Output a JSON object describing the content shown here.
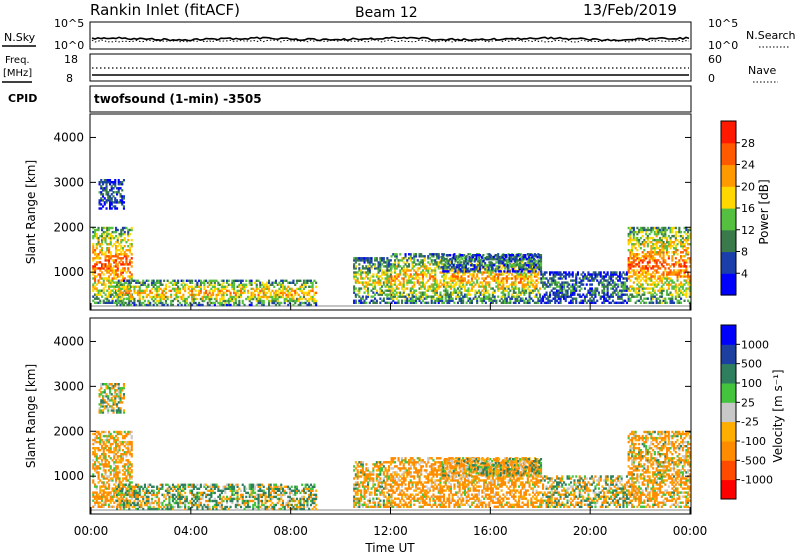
{
  "header": {
    "title": "Rankin Inlet (fitACF)",
    "beam": "Beam 12",
    "date": "13/Feb/2019"
  },
  "top_panel": {
    "nsky_label": "N.Sky",
    "nsky_ticks": [
      "10^5",
      "10^0"
    ],
    "nsearch_label": "N.Search",
    "nsearch_ticks": [
      "10^5",
      "10^0"
    ],
    "freq_label": "Freq.",
    "freq_unit": "[MHz]",
    "freq_ticks": [
      "18",
      "8"
    ],
    "nave_label": "Nave",
    "nave_ticks": [
      "60",
      "0"
    ],
    "cpid_label": "CPID",
    "cpid_text": "twofsound (1-min) -3505"
  },
  "colors": {
    "power": [
      "#0000ff",
      "#1a3faa",
      "#3a7a4a",
      "#55c040",
      "#ffd800",
      "#ff9900",
      "#ff5a00",
      "#ff1a00"
    ],
    "velocity": [
      "#ff0000",
      "#ff4b00",
      "#ff8c00",
      "#ffae00",
      "#c8c8c8",
      "#44c43c",
      "#2f7f5f",
      "#1c3fa0",
      "#0000ff"
    ]
  },
  "chart_data": [
    {
      "type": "heatmap",
      "name": "power",
      "ylabel": "Slant Range [km]",
      "xlabel": "",
      "x_ticks": [
        "00:00",
        "04:00",
        "08:00",
        "12:00",
        "16:00",
        "20:00",
        "00:00"
      ],
      "xlim_hours": [
        0,
        24
      ],
      "y_ticks": [
        1000,
        2000,
        3000,
        4000
      ],
      "ylim": [
        180,
        4500
      ],
      "colorbar_label": "Power [dB]",
      "colorbar_ticks": [
        "4",
        "8",
        "12",
        "16",
        "20",
        "24",
        "28"
      ],
      "colorbar_range": [
        0,
        32
      ],
      "regions": [
        {
          "t": [
            0.05,
            1.6
          ],
          "r": [
            300,
            2000
          ],
          "peak": 26
        },
        {
          "t": [
            1.0,
            9.0
          ],
          "r": [
            250,
            800
          ],
          "peak": 22
        },
        {
          "t": [
            10.5,
            12.0
          ],
          "r": [
            300,
            1300
          ],
          "peak": 18
        },
        {
          "t": [
            12.0,
            18.0
          ],
          "r": [
            300,
            1400
          ],
          "peak": 22
        },
        {
          "t": [
            14.0,
            18.0
          ],
          "r": [
            1000,
            1400
          ],
          "peak": 10
        },
        {
          "t": [
            18.0,
            21.5
          ],
          "r": [
            300,
            1000
          ],
          "peak": 10
        },
        {
          "t": [
            21.5,
            24.0
          ],
          "r": [
            300,
            2000
          ],
          "peak": 26
        },
        {
          "t": [
            0.3,
            1.3
          ],
          "r": [
            2400,
            3050
          ],
          "peak": 8
        }
      ]
    },
    {
      "type": "heatmap",
      "name": "velocity",
      "ylabel": "Slant Range [km]",
      "xlabel": "Time UT",
      "x_ticks": [
        "00:00",
        "04:00",
        "08:00",
        "12:00",
        "16:00",
        "20:00",
        "00:00"
      ],
      "xlim_hours": [
        0,
        24
      ],
      "y_ticks": [
        1000,
        2000,
        3000,
        4000
      ],
      "ylim": [
        180,
        4500
      ],
      "colorbar_label": "Velocity [m s⁻¹]",
      "colorbar_ticks": [
        "-1000",
        "-500",
        "-100",
        "-25",
        "25",
        "100",
        "500",
        "1000"
      ],
      "colorbar_range": [
        -1500,
        1500
      ],
      "regions": [
        {
          "t": [
            0.05,
            1.6
          ],
          "r": [
            300,
            2000
          ],
          "peak": -150
        },
        {
          "t": [
            1.0,
            9.0
          ],
          "r": [
            250,
            800
          ],
          "peak": 60
        },
        {
          "t": [
            10.5,
            12.0
          ],
          "r": [
            300,
            1300
          ],
          "peak": -80
        },
        {
          "t": [
            12.0,
            18.0
          ],
          "r": [
            300,
            1400
          ],
          "peak": -200
        },
        {
          "t": [
            14.0,
            18.0
          ],
          "r": [
            1000,
            1400
          ],
          "peak": 0
        },
        {
          "t": [
            18.0,
            21.5
          ],
          "r": [
            300,
            1000
          ],
          "peak": 0
        },
        {
          "t": [
            21.5,
            24.0
          ],
          "r": [
            300,
            2000
          ],
          "peak": -120
        },
        {
          "t": [
            0.3,
            1.3
          ],
          "r": [
            2400,
            3050
          ],
          "peak": 0
        }
      ]
    }
  ]
}
